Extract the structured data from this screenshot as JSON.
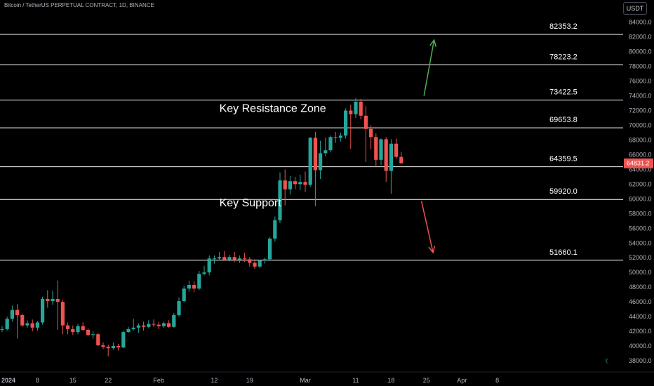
{
  "header": {
    "title": "Bitcoin / TetherUS PERPETUAL CONTRACT, 1D, BINANCE",
    "currency_button": "USDT"
  },
  "colors": {
    "up": "#26a69a",
    "down": "#ef5350",
    "line": "#ffffff",
    "arrow_up": "#4caf50",
    "arrow_down": "#ef5350"
  },
  "chart_data": {
    "type": "candlestick",
    "title": "Bitcoin / TetherUS PERPETUAL CONTRACT, 1D, BINANCE",
    "ylim": [
      37000,
      86500
    ],
    "y_ticks": [
      "84000.0",
      "82000.0",
      "80000.0",
      "78000.0",
      "76000.0",
      "74000.0",
      "72000.0",
      "70000.0",
      "68000.0",
      "66000.0",
      "64000.0",
      "62000.0",
      "60000.0",
      "58000.0",
      "56000.0",
      "54000.0",
      "52000.0",
      "50000.0",
      "48000.0",
      "46000.0",
      "44000.0",
      "42000.0",
      "40000.0",
      "38000.0"
    ],
    "y_tick_values": [
      84000,
      82000,
      80000,
      78000,
      76000,
      74000,
      72000,
      70000,
      68000,
      66000,
      64000,
      62000,
      60000,
      58000,
      56000,
      54000,
      52000,
      50000,
      48000,
      46000,
      44000,
      42000,
      40000,
      38000
    ],
    "x_ticks": [
      {
        "label": "2024",
        "day": 0
      },
      {
        "label": "8",
        "day": 7
      },
      {
        "label": "15",
        "day": 14
      },
      {
        "label": "22",
        "day": 21
      },
      {
        "label": "Feb",
        "day": 31
      },
      {
        "label": "12",
        "day": 42
      },
      {
        "label": "19",
        "day": 49
      },
      {
        "label": "Mar",
        "day": 60
      },
      {
        "label": "11",
        "day": 70
      },
      {
        "label": "18",
        "day": 77
      },
      {
        "label": "25",
        "day": 84
      },
      {
        "label": "Apr",
        "day": 91
      },
      {
        "label": "8",
        "day": 98
      }
    ],
    "last_price": "64831.2",
    "levels": [
      {
        "value": 82353.2,
        "label": "82353.2"
      },
      {
        "value": 78223.2,
        "label": "78223.2"
      },
      {
        "value": 73422.5,
        "label": "73422.5"
      },
      {
        "value": 69653.8,
        "label": "69653.8"
      },
      {
        "value": 64359.5,
        "label": "64359.5"
      },
      {
        "value": 59920.0,
        "label": "59920.0"
      },
      {
        "value": 51660.1,
        "label": "51660.1"
      }
    ],
    "annotations": [
      {
        "text": "Key Resistance Zone",
        "day": 43,
        "value": 71800
      },
      {
        "text": "Key Support",
        "day": 43,
        "value": 59000
      }
    ],
    "arrows": [
      {
        "direction": "up",
        "from": [
          83.5,
          74000
        ],
        "to": [
          85.5,
          81600
        ]
      },
      {
        "direction": "down",
        "from": [
          83,
          59700
        ],
        "to": [
          85.3,
          52700
        ]
      }
    ],
    "candles": [
      [
        42300,
        42700,
        41900,
        42300
      ],
      [
        42300,
        44000,
        42100,
        43700
      ],
      [
        43700,
        45500,
        43300,
        44900
      ],
      [
        44900,
        45700,
        41000,
        44200
      ],
      [
        44200,
        44400,
        42600,
        42800
      ],
      [
        42800,
        43500,
        42500,
        43100
      ],
      [
        43100,
        43600,
        42000,
        42500
      ],
      [
        42500,
        43400,
        42100,
        43200
      ],
      [
        43200,
        46700,
        42900,
        46400
      ],
      [
        46400,
        47600,
        45200,
        46100
      ],
      [
        46100,
        47500,
        45600,
        46400
      ],
      [
        46400,
        48900,
        42200,
        46000
      ],
      [
        46000,
        46300,
        41600,
        42800
      ],
      [
        42800,
        43200,
        41600,
        42300
      ],
      [
        42300,
        42800,
        41500,
        41900
      ],
      [
        41900,
        43000,
        41600,
        42700
      ],
      [
        42700,
        43200,
        42000,
        42200
      ],
      [
        42200,
        42400,
        41300,
        41500
      ],
      [
        41500,
        42000,
        41000,
        41600
      ],
      [
        41600,
        41800,
        40000,
        40100
      ],
      [
        40100,
        40500,
        39600,
        39900
      ],
      [
        39900,
        40200,
        38600,
        39700
      ],
      [
        39700,
        40500,
        39500,
        40000
      ],
      [
        40000,
        40300,
        39400,
        39800
      ],
      [
        39800,
        42100,
        39700,
        41900
      ],
      [
        41900,
        42600,
        41800,
        42300
      ],
      [
        42300,
        43700,
        42100,
        42500
      ],
      [
        42500,
        43100,
        41800,
        42800
      ],
      [
        42800,
        43300,
        42100,
        42600
      ],
      [
        42600,
        43500,
        42400,
        43000
      ],
      [
        43000,
        43600,
        42600,
        42900
      ],
      [
        42900,
        43300,
        42300,
        42700
      ],
      [
        42700,
        43300,
        42500,
        43100
      ],
      [
        43100,
        43500,
        42500,
        42600
      ],
      [
        42600,
        44500,
        42500,
        44200
      ],
      [
        44200,
        46600,
        44000,
        46100
      ],
      [
        46100,
        48200,
        45900,
        47800
      ],
      [
        47800,
        48900,
        47400,
        48300
      ],
      [
        48300,
        48800,
        47300,
        47800
      ],
      [
        47800,
        50200,
        47600,
        49800
      ],
      [
        49800,
        50900,
        49600,
        50000
      ],
      [
        50000,
        52300,
        49600,
        51900
      ],
      [
        51900,
        52300,
        51200,
        51900
      ],
      [
        51900,
        52800,
        51600,
        52100
      ],
      [
        52100,
        52900,
        51600,
        51700
      ],
      [
        51700,
        52400,
        51500,
        52100
      ],
      [
        52100,
        52800,
        51400,
        51700
      ],
      [
        51700,
        52300,
        51300,
        51900
      ],
      [
        51900,
        52700,
        51400,
        51800
      ],
      [
        51800,
        52100,
        50800,
        51300
      ],
      [
        51300,
        51800,
        50500,
        50800
      ],
      [
        50800,
        51700,
        50600,
        51600
      ],
      [
        51600,
        52000,
        51200,
        51800
      ],
      [
        51800,
        54800,
        51700,
        54600
      ],
      [
        54600,
        57600,
        54200,
        57100
      ],
      [
        57100,
        63600,
        56700,
        62500
      ],
      [
        62500,
        64000,
        59100,
        61300
      ],
      [
        61300,
        63100,
        60600,
        62400
      ],
      [
        62400,
        63000,
        61300,
        62000
      ],
      [
        62000,
        63300,
        61200,
        62300
      ],
      [
        62300,
        63700,
        60900,
        61900
      ],
      [
        61900,
        68400,
        61600,
        68300
      ],
      [
        68300,
        69100,
        59000,
        63900
      ],
      [
        63900,
        67900,
        62700,
        66200
      ],
      [
        66200,
        68300,
        65800,
        66600
      ],
      [
        66600,
        68600,
        66300,
        68400
      ],
      [
        68400,
        69100,
        67600,
        68300
      ],
      [
        68300,
        69000,
        67800,
        68600
      ],
      [
        68600,
        72300,
        68200,
        72000
      ],
      [
        72000,
        72800,
        66800,
        71500
      ],
      [
        71500,
        73700,
        71000,
        73200
      ],
      [
        73200,
        73600,
        70800,
        71300
      ],
      [
        71300,
        72600,
        65000,
        69500
      ],
      [
        69500,
        70000,
        66700,
        68400
      ],
      [
        68400,
        68900,
        64300,
        65300
      ],
      [
        65300,
        68200,
        64600,
        68100
      ],
      [
        68100,
        68400,
        62300,
        63800
      ],
      [
        63800,
        68100,
        60700,
        67500
      ],
      [
        67500,
        68200,
        65500,
        65700
      ],
      [
        65700,
        66400,
        64800,
        64831
      ]
    ]
  }
}
